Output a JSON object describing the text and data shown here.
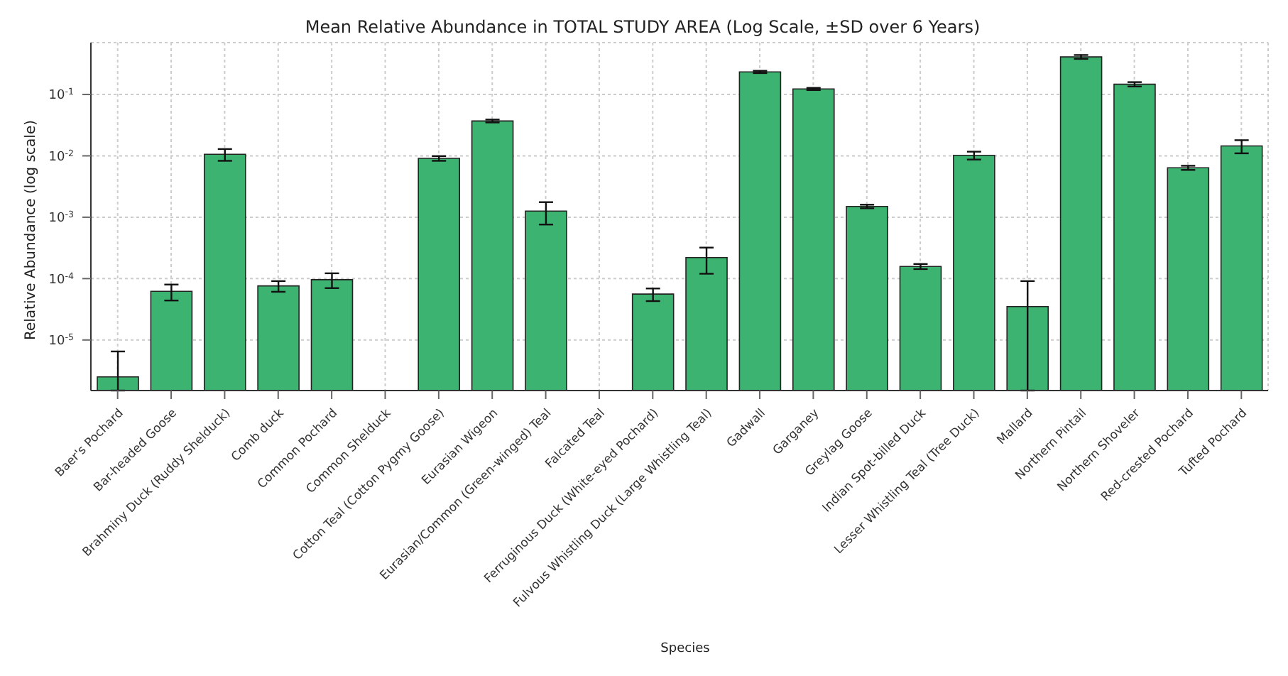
{
  "chart_data": {
    "type": "bar",
    "title": "Mean Relative Abundance in TOTAL STUDY AREA (Log Scale, ±SD over 6 Years)",
    "xlabel": "Species",
    "ylabel": "Relative Abundance (log scale)",
    "categories": [
      "Baer's Pochard",
      "Bar-headed Goose",
      "Brahminy Duck (Ruddy Shelduck)",
      "Comb duck",
      "Common Pochard",
      "Common Shelduck",
      "Cotton Teal (Cotton Pygmy Goose)",
      "Eurasian Wigeon",
      "Eurasian/Common (Green-winged) Teal",
      "Falcated Teal",
      "Ferruginous Duck (White-eyed Pochard)",
      "Fulvous Whistling Duck (Large Whistling Teal)",
      "Gadwall",
      "Garganey",
      "Greylag Goose",
      "Indian Spot-billed Duck",
      "Lesser Whistling Teal (Tree Duck)",
      "Mallard",
      "Northern Pintail",
      "Northern Shoveler",
      "Red-crested Pochard",
      "Tufted Pochard"
    ],
    "values": [
      2.5e-06,
      6.2e-05,
      0.0106,
      7.6e-05,
      9.6e-05,
      null,
      0.0091,
      0.037,
      0.00126,
      null,
      5.6e-05,
      0.00022,
      0.233,
      0.123,
      0.0015,
      0.000158,
      0.0102,
      3.5e-05,
      0.41,
      0.147,
      0.0064,
      0.0145
    ],
    "errors": [
      [
        1.5e-06,
        6.5e-06
      ],
      1.8e-05,
      0.0023,
      1.5e-05,
      2.6e-05,
      null,
      0.0008,
      0.002,
      0.0005,
      null,
      1.3e-05,
      0.0001,
      0.01,
      0.005,
      0.0001,
      1.5e-05,
      0.0015,
      [
        1.5e-06,
        9.1e-05
      ],
      0.03,
      0.012,
      0.0005,
      0.0035
    ],
    "color": "#3cb371",
    "log": true,
    "ylim": [
      1.5e-06,
      0.7
    ],
    "yticks": [
      {
        "value": 1e-05,
        "label": "10$^{-5}$"
      },
      {
        "value": 0.0001,
        "label": "10$^{-4}$"
      },
      {
        "value": 0.001,
        "label": "10$^{-3}$"
      },
      {
        "value": 0.01,
        "label": "10$^{-2}$"
      },
      {
        "value": 0.1,
        "label": "10$^{-1}$"
      }
    ],
    "grid": true
  }
}
